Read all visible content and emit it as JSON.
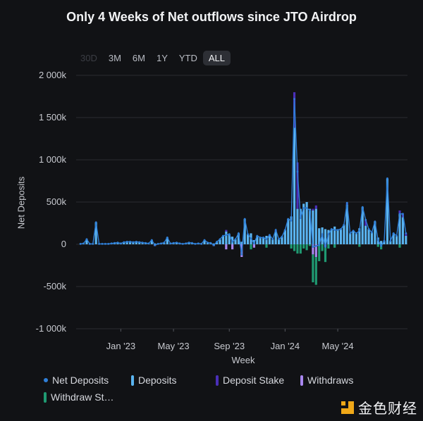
{
  "title": "Only 4 Weeks of Net outflows since JTO Airdrop",
  "range_buttons": [
    {
      "label": "30D",
      "state": "disabled"
    },
    {
      "label": "3M",
      "state": "normal"
    },
    {
      "label": "6M",
      "state": "normal"
    },
    {
      "label": "1Y",
      "state": "normal"
    },
    {
      "label": "YTD",
      "state": "normal"
    },
    {
      "label": "ALL",
      "state": "active"
    }
  ],
  "colors": {
    "net_deposits": "#2f7fd8",
    "deposits": "#5ab4f0",
    "deposit_stake": "#4a2fb8",
    "withdraws": "#a987f0",
    "withdraw_stake": "#1f9a72",
    "grid": "#2a2c31",
    "background": "#111215"
  },
  "legend": [
    {
      "label": "Net Deposits",
      "key": "net_deposits",
      "shape": "dot"
    },
    {
      "label": "Deposits",
      "key": "deposits",
      "shape": "bar"
    },
    {
      "label": "Deposit Stake",
      "key": "deposit_stake",
      "shape": "bar"
    },
    {
      "label": "Withdraws",
      "key": "withdraws",
      "shape": "bar"
    },
    {
      "label": "Withdraw St…",
      "key": "withdraw_stake",
      "shape": "bar"
    }
  ],
  "watermark": "金色财经",
  "chart_data": {
    "type": "bar",
    "title": "Only 4 Weeks of Net outflows since JTO Airdrop",
    "xlabel": "Week",
    "ylabel": "Net Deposits",
    "ylim": [
      -1000000,
      2000000
    ],
    "yticks": [
      {
        "value": 2000000,
        "label": "2 000k"
      },
      {
        "value": 1500000,
        "label": "1 500k"
      },
      {
        "value": 1000000,
        "label": "1 000k"
      },
      {
        "value": 500000,
        "label": "500k"
      },
      {
        "value": 0,
        "label": "0"
      },
      {
        "value": -500000,
        "label": "-500k"
      },
      {
        "value": -1000000,
        "label": "-1 000k"
      }
    ],
    "xticks": [
      {
        "label": "Jan '23",
        "index": 13
      },
      {
        "label": "May '23",
        "index": 30
      },
      {
        "label": "Sep '23",
        "index": 48
      },
      {
        "label": "Jan '24",
        "index": 66
      },
      {
        "label": "May '24",
        "index": 83
      }
    ],
    "grid": true,
    "legend_position": "bottom",
    "stacked": true,
    "series": [
      {
        "name": "Deposits",
        "values": [
          5000,
          10000,
          60000,
          5000,
          5000,
          260000,
          5000,
          5000,
          5000,
          5000,
          10000,
          15000,
          20000,
          10000,
          25000,
          30000,
          30000,
          25000,
          30000,
          25000,
          20000,
          15000,
          10000,
          50000,
          10000,
          5000,
          10000,
          20000,
          80000,
          10000,
          15000,
          20000,
          10000,
          5000,
          10000,
          20000,
          15000,
          5000,
          10000,
          5000,
          50000,
          20000,
          15000,
          10000,
          30000,
          60000,
          100000,
          150000,
          120000,
          90000,
          60000,
          130000,
          30000,
          300000,
          120000,
          130000,
          50000,
          100000,
          80000,
          80000,
          100000,
          100000,
          60000,
          150000,
          60000,
          90000,
          170000,
          300000,
          330000,
          1380000,
          420000,
          420000,
          480000,
          500000,
          420000,
          400000,
          420000,
          190000,
          200000,
          180000,
          170000,
          180000,
          210000,
          170000,
          180000,
          230000,
          470000,
          130000,
          160000,
          130000,
          190000,
          440000,
          220000,
          180000,
          140000,
          270000,
          80000,
          40000,
          40000,
          780000,
          40000,
          130000,
          100000,
          360000,
          320000,
          100000
        ],
        "name_key": "deposits"
      },
      {
        "name": "Deposit Stake",
        "values": [
          0,
          0,
          0,
          0,
          0,
          0,
          0,
          0,
          0,
          0,
          0,
          0,
          0,
          0,
          0,
          0,
          0,
          0,
          0,
          0,
          0,
          0,
          0,
          0,
          0,
          0,
          0,
          0,
          0,
          0,
          0,
          0,
          0,
          0,
          0,
          0,
          0,
          0,
          0,
          0,
          0,
          0,
          0,
          0,
          0,
          0,
          0,
          20000,
          0,
          0,
          0,
          0,
          0,
          0,
          0,
          0,
          0,
          0,
          0,
          0,
          0,
          10000,
          0,
          20000,
          0,
          0,
          0,
          0,
          0,
          420000,
          550000,
          0,
          0,
          0,
          0,
          20000,
          40000,
          0,
          0,
          0,
          0,
          0,
          0,
          0,
          0,
          0,
          20000,
          0,
          0,
          0,
          0,
          0,
          70000,
          0,
          0,
          0,
          0,
          0,
          0,
          0,
          0,
          0,
          0,
          40000,
          40000,
          30000
        ]
      },
      {
        "name": "Withdraws",
        "values": [
          0,
          0,
          0,
          0,
          0,
          0,
          0,
          0,
          0,
          0,
          0,
          0,
          0,
          0,
          0,
          0,
          0,
          0,
          0,
          0,
          0,
          0,
          0,
          0,
          -20000,
          0,
          0,
          0,
          0,
          0,
          0,
          0,
          0,
          0,
          0,
          0,
          0,
          0,
          0,
          0,
          0,
          0,
          0,
          -20000,
          0,
          0,
          0,
          -60000,
          0,
          -60000,
          0,
          0,
          -150000,
          0,
          0,
          0,
          -40000,
          0,
          0,
          0,
          0,
          0,
          0,
          0,
          0,
          0,
          0,
          0,
          0,
          0,
          0,
          0,
          0,
          0,
          0,
          -120000,
          -150000,
          0,
          0,
          -30000,
          0,
          0,
          0,
          0,
          0,
          0,
          0,
          0,
          0,
          0,
          0,
          0,
          0,
          0,
          0,
          0,
          0,
          0,
          0,
          0,
          0,
          0,
          0,
          0,
          0,
          0
        ]
      },
      {
        "name": "Withdraw Stake",
        "values": [
          0,
          0,
          0,
          0,
          0,
          0,
          0,
          0,
          0,
          0,
          0,
          0,
          0,
          0,
          0,
          0,
          0,
          0,
          0,
          0,
          0,
          0,
          0,
          0,
          0,
          0,
          0,
          0,
          0,
          0,
          0,
          0,
          0,
          0,
          0,
          0,
          0,
          0,
          0,
          0,
          0,
          0,
          0,
          0,
          0,
          0,
          0,
          0,
          0,
          0,
          0,
          0,
          0,
          0,
          0,
          -60000,
          0,
          0,
          0,
          0,
          -40000,
          0,
          0,
          0,
          0,
          0,
          0,
          0,
          -50000,
          -80000,
          -110000,
          -110000,
          -50000,
          -70000,
          -20000,
          -330000,
          -330000,
          -200000,
          -80000,
          -180000,
          -50000,
          0,
          -40000,
          0,
          0,
          0,
          0,
          0,
          0,
          0,
          -30000,
          0,
          0,
          0,
          0,
          0,
          -30000,
          -60000,
          0,
          0,
          0,
          0,
          0,
          -40000,
          0,
          0
        ]
      },
      {
        "name": "Net Deposits",
        "values": "sum of the four series per week (line with dots)"
      }
    ]
  }
}
